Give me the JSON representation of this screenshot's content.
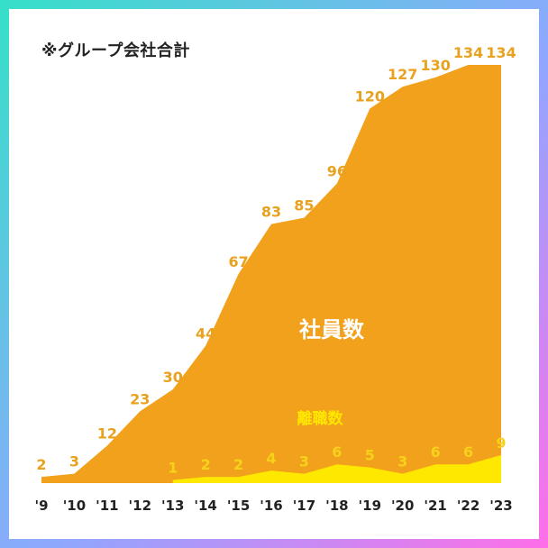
{
  "note": "※グループ会社合計",
  "colors": {
    "employees_fill": "#f2a11c",
    "employees_label": "#e8a21f",
    "resignations_fill": "#ffe800",
    "resignations_label": "#f6d21a",
    "axis_text": "#222222",
    "series_name_employees": "#ffffff",
    "series_name_resignations": "#ffe800"
  },
  "chart_data": {
    "type": "area",
    "x": [
      "'9",
      "'10",
      "'11",
      "'12",
      "'13",
      "'14",
      "'15",
      "'16",
      "'17",
      "'18",
      "'19",
      "'20",
      "'21",
      "'22",
      "'23"
    ],
    "series": [
      {
        "name": "社員数",
        "values": [
          2,
          3,
          12,
          23,
          30,
          44,
          67,
          83,
          85,
          96,
          120,
          127,
          130,
          134,
          134
        ],
        "labels": [
          "2",
          "3",
          "12",
          "23",
          "30",
          "44",
          "67",
          "83",
          "85",
          "96",
          "120",
          "127",
          "130",
          "134",
          "134"
        ]
      },
      {
        "name": "離職数",
        "values": [
          null,
          null,
          null,
          null,
          1,
          2,
          2,
          4,
          3,
          6,
          5,
          3,
          6,
          6,
          9
        ],
        "labels": [
          "",
          "",
          "",
          "",
          "1",
          "2",
          "2",
          "4",
          "3",
          "6",
          "5",
          "3",
          "6",
          "6",
          "9"
        ]
      }
    ]
  }
}
